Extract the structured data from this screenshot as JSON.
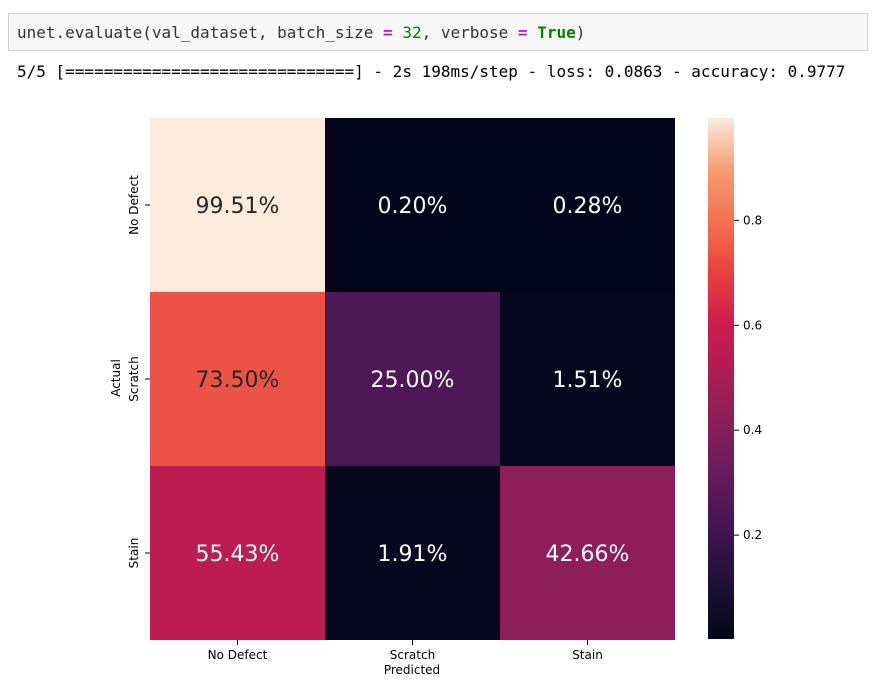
{
  "code_cell": {
    "fn": "unet.evaluate(val_dataset, batch_size ",
    "op1": "=",
    "space1": " ",
    "num": "32",
    "mid": ", verbose ",
    "op2": "=",
    "space2": " ",
    "kw": "True",
    "close": ")"
  },
  "output": {
    "text": "5/5 [==============================] - 2s 198ms/step - loss: 0.0863 - accuracy: 0.9777"
  },
  "chart_data": {
    "type": "heatmap",
    "title": "",
    "xlabel": "Predicted",
    "ylabel": "Actual",
    "x_categories": [
      "No Defect",
      "Scratch",
      "Stain"
    ],
    "y_categories": [
      "No Defect",
      "Scratch",
      "Stain"
    ],
    "values": [
      [
        0.9951,
        0.002,
        0.0028
      ],
      [
        0.735,
        0.25,
        0.0151
      ],
      [
        0.5543,
        0.0191,
        0.4266
      ]
    ],
    "labels": [
      [
        "99.51%",
        "0.20%",
        "0.28%"
      ],
      [
        "73.50%",
        "25.00%",
        "1.51%"
      ],
      [
        "55.43%",
        "1.91%",
        "42.66%"
      ]
    ],
    "colorbar": {
      "range": [
        0.002,
        0.9951
      ],
      "ticks": [
        0.2,
        0.4,
        0.6,
        0.8
      ],
      "tick_labels": [
        "0.2",
        "0.4",
        "0.6",
        "0.8"
      ]
    },
    "colormap": "rocket",
    "grid": false,
    "legend": "colorbar-right"
  }
}
